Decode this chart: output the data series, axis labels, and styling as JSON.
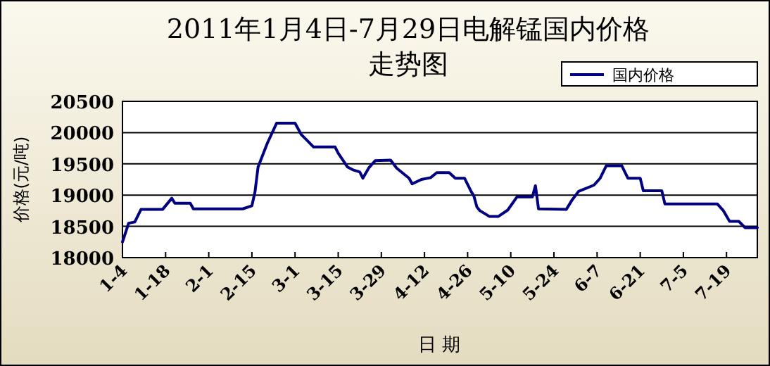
{
  "chart_data": {
    "type": "line",
    "title": "2011年1月4日-7月29日电解锰国内价格",
    "subtitle": "走势图",
    "xlabel": "日 期",
    "ylabel": "价格(元/吨)",
    "ylim": [
      18000,
      20500
    ],
    "yticks": [
      18000,
      18500,
      19000,
      19500,
      20000,
      20500
    ],
    "xlim": [
      "--01-04",
      "--07-29"
    ],
    "xticks": [
      {
        "value": "--01-04",
        "label": "1-4"
      },
      {
        "value": "--01-18",
        "label": "1-18"
      },
      {
        "value": "--02-01",
        "label": "2-1"
      },
      {
        "value": "--02-15",
        "label": "2-15"
      },
      {
        "value": "--03-01",
        "label": "3-1"
      },
      {
        "value": "--03-15",
        "label": "3-15"
      },
      {
        "value": "--03-29",
        "label": "3-29"
      },
      {
        "value": "--04-12",
        "label": "4-12"
      },
      {
        "value": "--04-26",
        "label": "4-26"
      },
      {
        "value": "--05-10",
        "label": "5-10"
      },
      {
        "value": "--05-24",
        "label": "5-24"
      },
      {
        "value": "--06-07",
        "label": "6-7"
      },
      {
        "value": "--06-21",
        "label": "6-21"
      },
      {
        "value": "--07-05",
        "label": "7-5"
      },
      {
        "value": "--07-19",
        "label": "7-19"
      }
    ],
    "grid": "y",
    "legend": "top right",
    "series": [
      {
        "name": "国内价格",
        "color": "#000080",
        "x": [
          "--01-04",
          "--01-06",
          "--01-08",
          "--01-10",
          "--01-17",
          "--01-20",
          "--01-21",
          "--01-26",
          "--01-27",
          "--02-12",
          "--02-15",
          "--02-16",
          "--02-17",
          "--02-20",
          "--02-23",
          "--03-01",
          "--03-03",
          "--03-05",
          "--03-07",
          "--03-14",
          "--03-15",
          "--03-18",
          "--03-20",
          "--03-22",
          "--03-23",
          "--03-25",
          "--03-27",
          "--04-01",
          "--04-03",
          "--04-07",
          "--04-08",
          "--04-11",
          "--04-14",
          "--04-16",
          "--04-20",
          "--04-22",
          "--04-25",
          "--04-27",
          "--04-28",
          "--04-29",
          "--04-30",
          "--05-03",
          "--05-06",
          "--05-09",
          "--05-12",
          "--05-17",
          "--05-18",
          "--05-19",
          "--05-28",
          "--05-30",
          "--06-01",
          "--06-06",
          "--06-08",
          "--06-10",
          "--06-15",
          "--06-17",
          "--06-21",
          "--06-22",
          "--06-28",
          "--06-29",
          "--07-16",
          "--07-18",
          "--07-20",
          "--07-23",
          "--07-25",
          "--07-29"
        ],
        "values": [
          18250,
          18550,
          18570,
          18770,
          18770,
          18950,
          18870,
          18870,
          18780,
          18780,
          18830,
          19050,
          19450,
          19830,
          20150,
          20150,
          19970,
          19870,
          19770,
          19770,
          19670,
          19450,
          19400,
          19370,
          19270,
          19440,
          19550,
          19560,
          19430,
          19270,
          19180,
          19250,
          19280,
          19360,
          19360,
          19270,
          19270,
          19070,
          18990,
          18810,
          18750,
          18660,
          18660,
          18760,
          18970,
          18970,
          19150,
          18780,
          18770,
          18930,
          19060,
          19160,
          19270,
          19470,
          19470,
          19270,
          19270,
          19070,
          19070,
          18860,
          18860,
          18750,
          18580,
          18580,
          18480,
          18480
        ]
      }
    ]
  }
}
